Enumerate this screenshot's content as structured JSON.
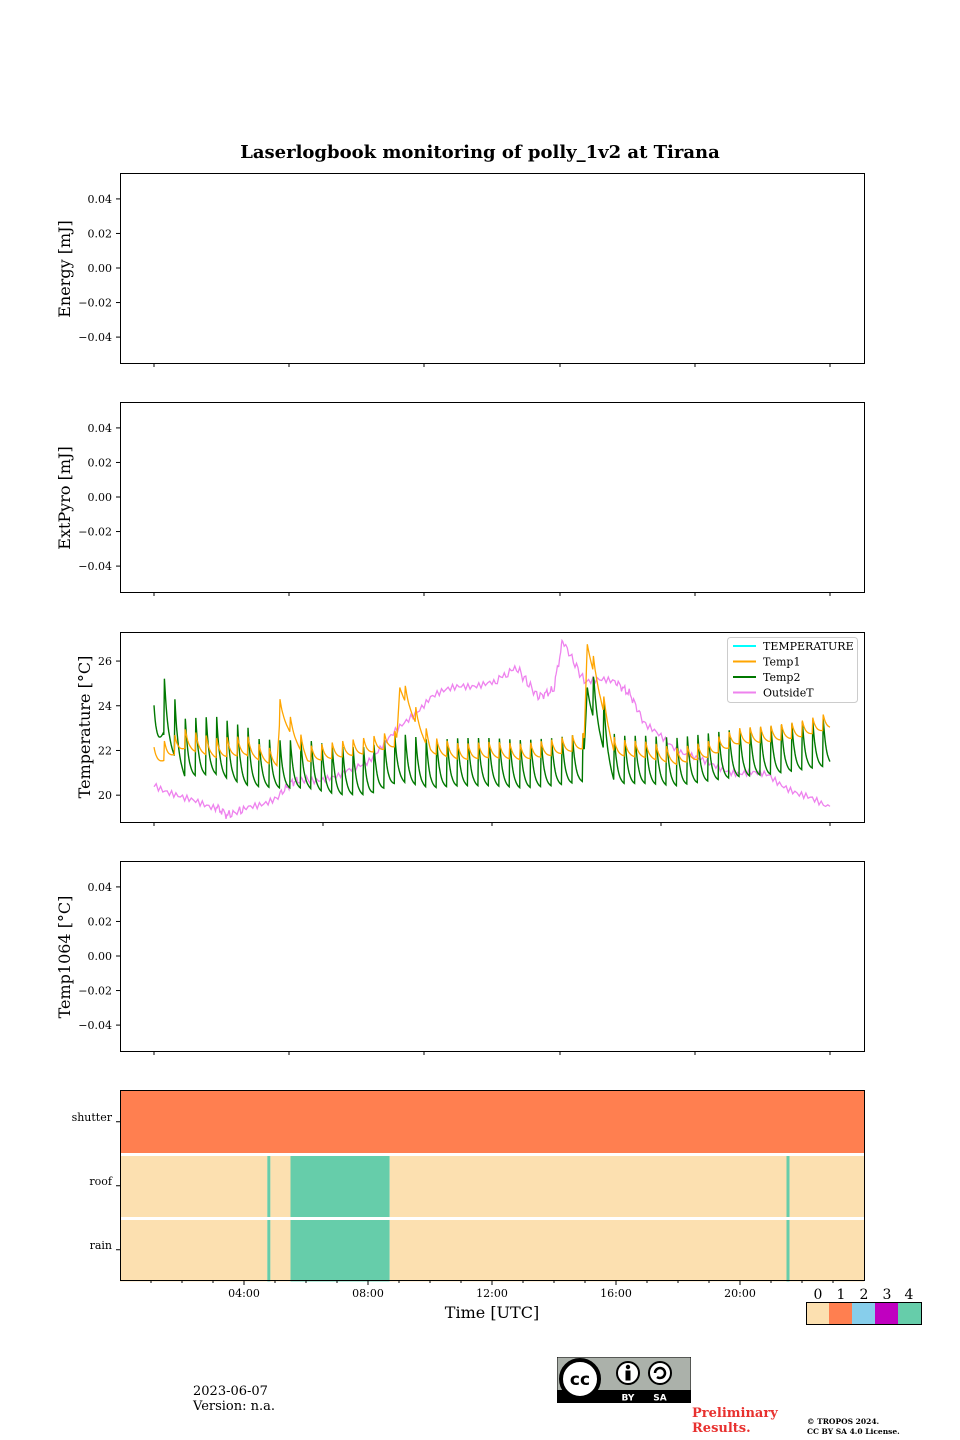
{
  "title": "Laserlogbook monitoring of polly_1v2 at Tirana",
  "panels": {
    "energy": {
      "ylabel": "Energy [mJ]",
      "yticks": [
        "0.04",
        "0.02",
        "0.00",
        "−0.02",
        "−0.04"
      ]
    },
    "extpyro": {
      "ylabel": "ExtPyro [mJ]",
      "yticks": [
        "0.04",
        "0.02",
        "0.00",
        "−0.02",
        "−0.04"
      ]
    },
    "temperature": {
      "ylabel": "Temperature [°C]",
      "yticks": [
        "26",
        "24",
        "22",
        "20"
      ]
    },
    "temp1064": {
      "ylabel": "Temp1064 [°C]",
      "yticks": [
        "0.04",
        "0.02",
        "0.00",
        "−0.02",
        "−0.04"
      ]
    },
    "status": {
      "rows": [
        "shutter",
        "roof",
        "rain"
      ]
    }
  },
  "xaxis": {
    "label": "Time [UTC]",
    "ticks": [
      "04:00",
      "08:00",
      "12:00",
      "16:00",
      "20:00"
    ]
  },
  "legend": {
    "entries": [
      "TEMPERATURE",
      "Temp1",
      "Temp2",
      "OutsideT"
    ]
  },
  "colorbar": {
    "labels": [
      "0",
      "1",
      "2",
      "3",
      "4"
    ],
    "colors": [
      "#fce0b0",
      "#ff7f50",
      "#87ceeb",
      "#c000c0",
      "#66cdaa"
    ]
  },
  "series_colors": {
    "TEMPERATURE": "#00ffff",
    "Temp1": "#ffa500",
    "Temp2": "#007800",
    "OutsideT": "#ee82ee"
  },
  "footer": {
    "date": "2023-06-07",
    "version": "Version: n.a.",
    "preliminary": "Preliminary\nResults.",
    "copyright_1": "© TROPOS 2024.",
    "copyright_2": "CC BY SA 4.0 License."
  },
  "badge": {
    "by": "BY",
    "sa": "SA"
  },
  "chart_data": [
    {
      "type": "line",
      "title": "Laserlogbook monitoring of polly_1v2 at Tirana",
      "xlabel": "",
      "ylabel": "Energy [mJ]",
      "ylim": [
        -0.055,
        0.055
      ],
      "series": []
    },
    {
      "type": "line",
      "xlabel": "",
      "ylabel": "ExtPyro [mJ]",
      "ylim": [
        -0.055,
        0.055
      ],
      "series": []
    },
    {
      "type": "line",
      "xlabel": "",
      "ylabel": "Temperature [°C]",
      "ylim": [
        18.8,
        27.3
      ],
      "xlim_hours": [
        0,
        24
      ],
      "legend_position": "top-right",
      "series": [
        {
          "name": "TEMPERATURE",
          "x": [],
          "y": []
        },
        {
          "name": "Temp1",
          "x": [
            1.0,
            2.0,
            3.0,
            4.0,
            5.0,
            5.1,
            6.0,
            7.0,
            8.0,
            8.9,
            9.0,
            10.0,
            11.0,
            12.0,
            13.0,
            14.0,
            15.0,
            15.1,
            16.0,
            17.0,
            18.0,
            19.0,
            20.0,
            21.0,
            22.0,
            23.0,
            23.0
          ],
          "y": [
            21.6,
            22.4,
            22.0,
            22.1,
            21.6,
            23.9,
            21.8,
            22.0,
            22.2,
            22.5,
            25.0,
            22.2,
            21.9,
            22.0,
            21.9,
            22.1,
            22.4,
            26.9,
            22.1,
            22.0,
            21.7,
            22.0,
            22.6,
            22.7,
            22.9,
            23.3,
            22.3
          ]
        },
        {
          "name": "Temp2",
          "x": [
            1.0,
            1.3,
            2.0,
            3.0,
            4.0,
            5.0,
            6.0,
            7.0,
            8.0,
            9.0,
            10.0,
            11.0,
            12.0,
            13.0,
            14.0,
            15.0,
            15.1,
            16.0,
            17.0,
            18.0,
            19.0,
            20.0,
            21.0,
            22.0,
            23.0
          ],
          "y": [
            22.4,
            23.7,
            21.8,
            21.9,
            21.4,
            21.3,
            21.3,
            21.0,
            21.0,
            21.6,
            21.3,
            21.4,
            21.4,
            21.3,
            21.4,
            21.6,
            25.3,
            21.5,
            21.5,
            21.4,
            21.6,
            21.8,
            21.9,
            22.1,
            22.3
          ]
        },
        {
          "name": "OutsideT",
          "x": [
            1.0,
            2.0,
            3.0,
            3.4,
            4.0,
            5.0,
            5.5,
            6.0,
            7.0,
            8.0,
            9.0,
            10.0,
            11.0,
            12.0,
            12.8,
            13.5,
            14.0,
            14.3,
            15.0,
            16.0,
            16.5,
            17.0,
            18.0,
            19.0,
            20.0,
            21.0,
            22.0,
            23.0
          ],
          "y": [
            20.5,
            19.8,
            19.5,
            19.1,
            19.4,
            19.9,
            20.6,
            20.7,
            20.8,
            21.6,
            23.0,
            24.4,
            24.9,
            25.0,
            25.7,
            24.4,
            24.7,
            26.9,
            25.1,
            25.1,
            24.5,
            23.1,
            22.1,
            21.4,
            21.0,
            20.9,
            20.0,
            19.5
          ]
        }
      ]
    },
    {
      "type": "line",
      "xlabel": "",
      "ylabel": "Temp1064 [°C]",
      "ylim": [
        -0.055,
        0.055
      ],
      "series": []
    },
    {
      "type": "heatmap",
      "xlabel": "Time [UTC]",
      "rows": [
        "shutter",
        "roof",
        "rain"
      ],
      "xlim_hours": [
        0,
        24
      ],
      "segments": {
        "shutter": [
          {
            "start": 0.0,
            "end": 24.0,
            "value": 1
          }
        ],
        "roof": [
          {
            "start": 0.0,
            "end": 4.75,
            "value": 0
          },
          {
            "start": 4.75,
            "end": 4.85,
            "value": 4
          },
          {
            "start": 4.85,
            "end": 5.5,
            "value": 0
          },
          {
            "start": 5.5,
            "end": 8.7,
            "value": 4
          },
          {
            "start": 8.7,
            "end": 21.5,
            "value": 0
          },
          {
            "start": 21.5,
            "end": 21.6,
            "value": 4
          },
          {
            "start": 21.6,
            "end": 24.0,
            "value": 0
          }
        ],
        "rain": [
          {
            "start": 0.0,
            "end": 4.75,
            "value": 0
          },
          {
            "start": 4.75,
            "end": 4.85,
            "value": 4
          },
          {
            "start": 4.85,
            "end": 5.5,
            "value": 0
          },
          {
            "start": 5.5,
            "end": 8.7,
            "value": 4
          },
          {
            "start": 8.7,
            "end": 21.5,
            "value": 0
          },
          {
            "start": 21.5,
            "end": 21.6,
            "value": 4
          },
          {
            "start": 21.6,
            "end": 24.0,
            "value": 0
          }
        ]
      }
    }
  ]
}
